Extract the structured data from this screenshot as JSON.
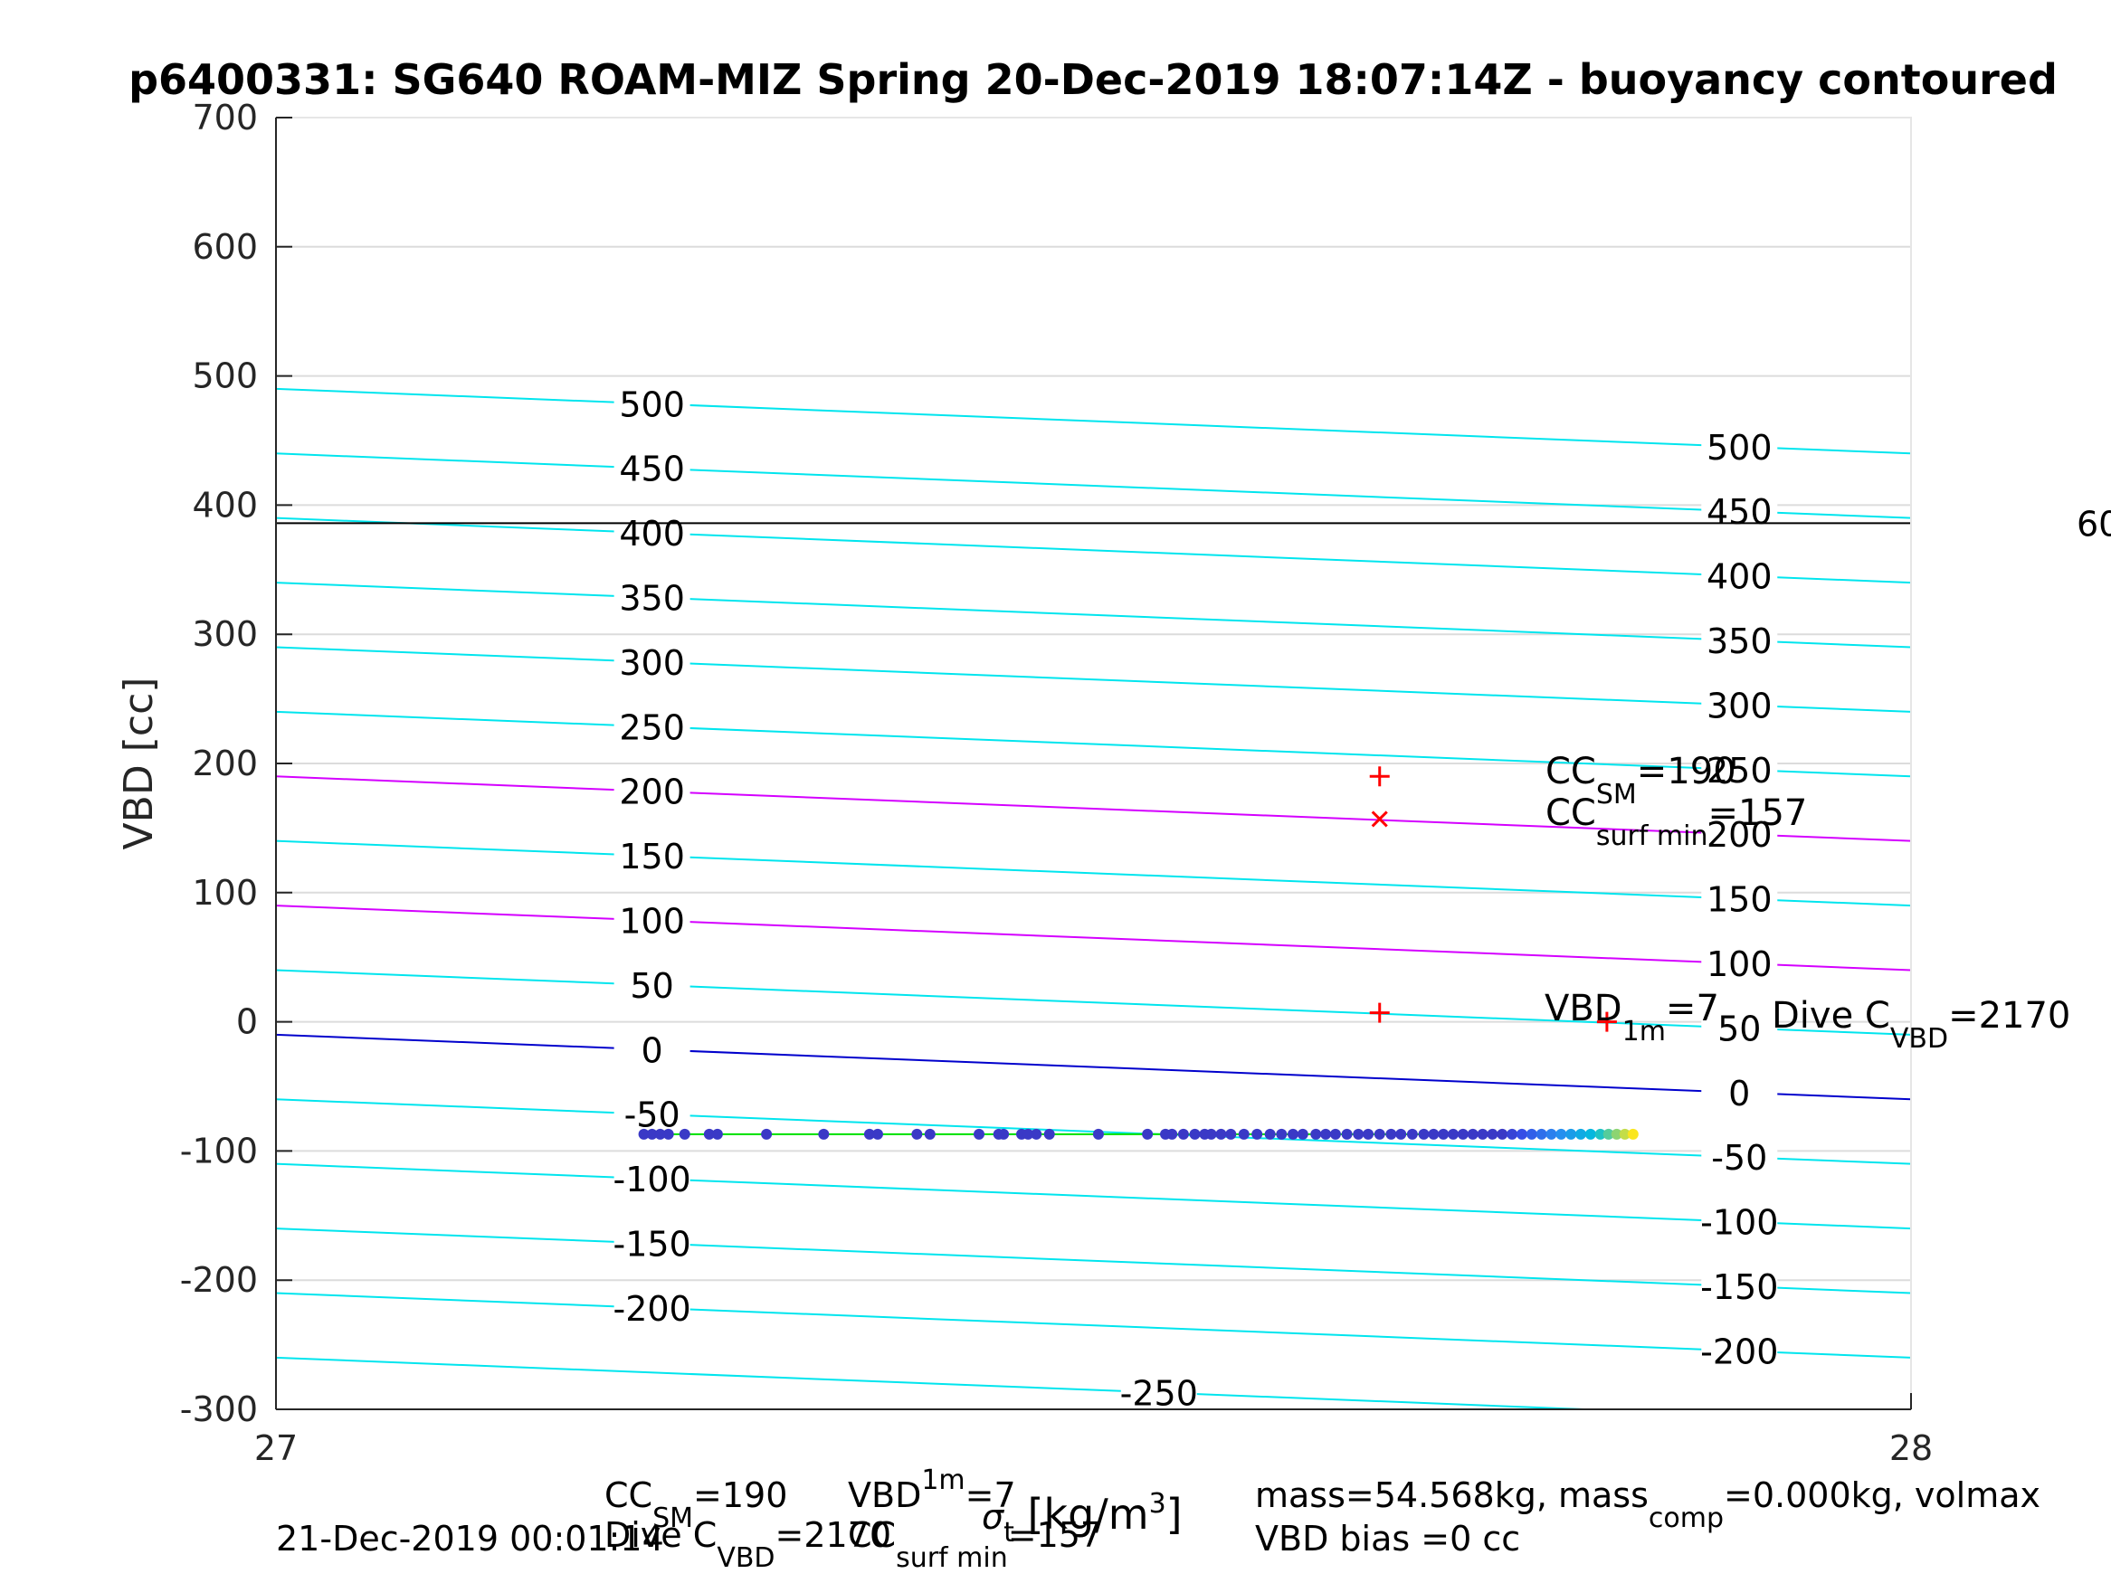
{
  "chart_data": {
    "type": "scatter",
    "title": "p6400331: SG640 ROAM-MIZ Spring 20-Dec-2019 18:07:14Z - buoyancy contoured",
    "xlabel_parts": [
      "σ",
      "t",
      " [kg/m",
      "3",
      "]"
    ],
    "ylabel": "VBD [cc]",
    "xlim": [
      27,
      28
    ],
    "ylim": [
      -300,
      700
    ],
    "xticks": [
      "27",
      "28"
    ],
    "yticks": [
      "-300",
      "-200",
      "-100",
      "0",
      "100",
      "200",
      "300",
      "400",
      "500",
      "600",
      "700"
    ],
    "grid": true,
    "horizontal_line": {
      "y": 386,
      "color": "#000000",
      "label": "60"
    },
    "contours": {
      "slope_per_unit_x": -50,
      "levels": [
        500,
        450,
        400,
        350,
        300,
        250,
        200,
        150,
        100,
        50,
        0,
        -50,
        -100,
        -150,
        -200,
        -250
      ],
      "left_intercepts": [
        490,
        440,
        390,
        340,
        290,
        240,
        190,
        140,
        90,
        40,
        -10,
        -60,
        -110,
        -160,
        -210,
        -260
      ],
      "highlight": [
        {
          "level": 200,
          "color": "#d400ff"
        },
        {
          "level": 100,
          "color": "#d400ff"
        },
        {
          "level": 0,
          "color": "#0000cc"
        }
      ],
      "default_color": "#00e5ee",
      "left_labels": [
        "500",
        "450",
        "400",
        "350",
        "300",
        "250",
        "200",
        "150",
        "100",
        "50",
        "0",
        "-50",
        "-100",
        "-150",
        "-200",
        "-250"
      ],
      "right_labels": [
        "500",
        "450",
        "400",
        "350",
        "300",
        "250",
        "200",
        "150",
        "100",
        "50",
        "0",
        "-50",
        "-100",
        "-150",
        "-200"
      ]
    },
    "series": [
      {
        "type": "line",
        "color": "#00e000",
        "x": [
          27.225,
          27.83
        ],
        "y": [
          -87,
          -87
        ]
      },
      {
        "type": "scatter",
        "x": [
          27.225,
          27.23,
          27.235,
          27.24,
          27.25,
          27.265,
          27.27,
          27.3,
          27.335,
          27.363,
          27.368,
          27.392,
          27.4,
          27.43,
          27.442,
          27.445,
          27.456,
          27.46,
          27.465,
          27.473,
          27.503,
          27.533,
          27.544,
          27.548,
          27.555,
          27.562,
          27.568,
          27.572,
          27.578,
          27.584,
          27.592,
          27.6,
          27.608,
          27.615,
          27.622,
          27.628,
          27.636,
          27.642,
          27.648,
          27.655,
          27.662,
          27.668,
          27.675,
          27.682,
          27.688,
          27.695,
          27.702,
          27.708,
          27.714,
          27.72,
          27.726,
          27.732,
          27.738,
          27.744,
          27.75,
          27.756,
          27.762,
          27.768,
          27.774,
          27.78,
          27.786,
          27.792,
          27.798,
          27.804,
          27.81,
          27.815,
          27.82,
          27.825,
          27.83
        ],
        "y": [
          -87,
          -87,
          -87,
          -87,
          -87,
          -87,
          -87,
          -87,
          -87,
          -87,
          -87,
          -87,
          -87,
          -87,
          -87,
          -87,
          -87,
          -87,
          -87,
          -87,
          -87,
          -87,
          -87,
          -87,
          -87,
          -87,
          -87,
          -87,
          -87,
          -87,
          -87,
          -87,
          -87,
          -87,
          -87,
          -87,
          -87,
          -87,
          -87,
          -87,
          -87,
          -87,
          -87,
          -87,
          -87,
          -87,
          -87,
          -87,
          -87,
          -87,
          -87,
          -87,
          -87,
          -87,
          -87,
          -87,
          -87,
          -87,
          -87,
          -87,
          -87,
          -87,
          -87,
          -87,
          -87,
          -87,
          -87,
          -87,
          -87
        ]
      }
    ],
    "markers": [
      {
        "symbol": "+",
        "x": 27.675,
        "y": 190,
        "color": "#ff0000"
      },
      {
        "symbol": "x",
        "x": 27.675,
        "y": 157,
        "color": "#ff0000"
      },
      {
        "symbol": "+",
        "x": 27.675,
        "y": 7,
        "color": "#ff0000"
      },
      {
        "symbol": "+",
        "x": 27.814,
        "y": 0,
        "color": "#ff0000"
      }
    ],
    "annotations": {
      "cc_sm": {
        "main": "CC",
        "sub": "SM",
        "value": "=190"
      },
      "cc_surf": {
        "main": "CC",
        "sub": "surf min",
        "value": "=157"
      },
      "vbd_1m": {
        "main": "VBD",
        "sub": "1m",
        "value": "=7"
      },
      "dive_c": {
        "main": "Dive C",
        "sub": "VBD",
        "value": "=2170"
      }
    },
    "footer": {
      "date": "21-Dec-2019 00:01:14",
      "f_cc_sm": {
        "main": "CC",
        "sub": "SM",
        "value": "=190"
      },
      "f_vbd": {
        "main": "VBD",
        "sub": "1m",
        "value": "=7"
      },
      "f_dive": {
        "main": "Dive C",
        "sub": "VBD",
        "value": "=2170"
      },
      "f_ccsurf": {
        "main": "CC",
        "sub": "surf min",
        "value": "=157"
      },
      "mass_line": {
        "a": "mass=54.568kg, mass",
        "sub": "comp",
        "b": "=0.000kg, volmax"
      },
      "bias": "VBD bias =0 cc"
    }
  }
}
